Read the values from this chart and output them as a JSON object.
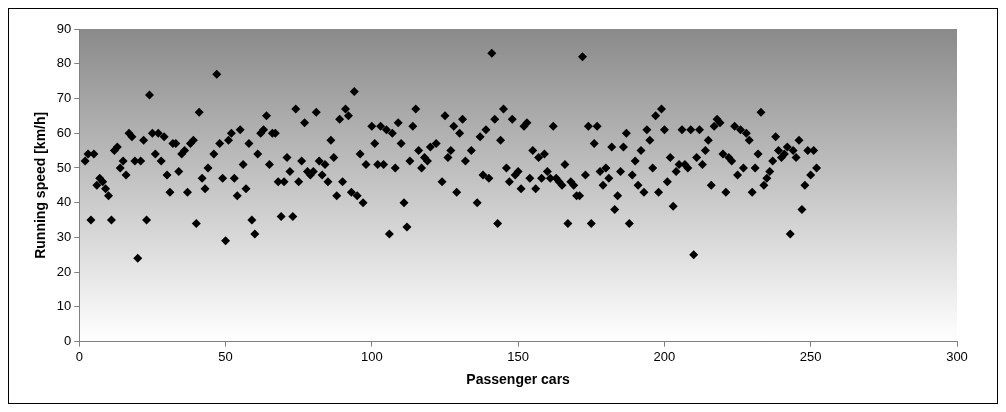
{
  "chart_data": {
    "type": "scatter",
    "xlabel": "Passenger cars",
    "ylabel": "Running speed [km/h]",
    "x": [
      2,
      3,
      4,
      5,
      6,
      7,
      8,
      9,
      10,
      11,
      12,
      13,
      14,
      15,
      16,
      17,
      18,
      19,
      20,
      21,
      22,
      23,
      24,
      25,
      26,
      27,
      28,
      29,
      30,
      31,
      32,
      33,
      34,
      35,
      36,
      37,
      38,
      39,
      40,
      41,
      42,
      43,
      44,
      46,
      47,
      48,
      49,
      50,
      51,
      52,
      53,
      54,
      55,
      56,
      57,
      58,
      59,
      60,
      61,
      62,
      63,
      64,
      65,
      66,
      67,
      68,
      69,
      70,
      71,
      72,
      73,
      74,
      75,
      76,
      77,
      78,
      79,
      80,
      81,
      82,
      83,
      84,
      85,
      86,
      87,
      88,
      89,
      90,
      91,
      92,
      93,
      94,
      95,
      96,
      97,
      98,
      100,
      101,
      102,
      103,
      104,
      105,
      106,
      107,
      108,
      109,
      110,
      111,
      112,
      113,
      114,
      115,
      116,
      117,
      118,
      119,
      120,
      122,
      124,
      125,
      126,
      127,
      128,
      129,
      130,
      131,
      132,
      134,
      136,
      137,
      138,
      139,
      140,
      141,
      142,
      143,
      144,
      145,
      146,
      147,
      148,
      149,
      150,
      151,
      152,
      153,
      154,
      155,
      156,
      157,
      158,
      159,
      160,
      161,
      162,
      163,
      164,
      165,
      166,
      167,
      168,
      169,
      170,
      171,
      172,
      173,
      174,
      175,
      176,
      177,
      178,
      179,
      180,
      181,
      182,
      183,
      184,
      185,
      186,
      187,
      188,
      189,
      190,
      191,
      192,
      193,
      194,
      195,
      196,
      197,
      198,
      199,
      200,
      201,
      202,
      203,
      204,
      205,
      206,
      207,
      208,
      209,
      210,
      211,
      212,
      213,
      214,
      215,
      216,
      217,
      218,
      219,
      220,
      221,
      222,
      223,
      224,
      225,
      226,
      227,
      228,
      229,
      230,
      231,
      232,
      233,
      234,
      235,
      236,
      237,
      238,
      239,
      240,
      241,
      242,
      243,
      244,
      245,
      246,
      247,
      248,
      249,
      250,
      251,
      252
    ],
    "values": [
      52,
      54,
      35,
      54,
      45,
      47,
      46,
      44,
      42,
      35,
      55,
      56,
      50,
      52,
      48,
      60,
      59,
      52,
      24,
      52,
      58,
      35,
      71,
      60,
      54,
      60,
      52,
      59,
      48,
      43,
      57,
      57,
      49,
      54,
      55,
      43,
      57,
      58,
      34,
      66,
      47,
      44,
      50,
      54,
      77,
      57,
      47,
      29,
      58,
      60,
      47,
      42,
      61,
      51,
      44,
      57,
      35,
      31,
      54,
      60,
      61,
      65,
      51,
      60,
      60,
      46,
      36,
      46,
      53,
      49,
      36,
      67,
      46,
      52,
      63,
      49,
      48,
      49,
      66,
      52,
      48,
      51,
      46,
      58,
      53,
      42,
      64,
      46,
      67,
      65,
      43,
      72,
      42,
      54,
      40,
      51,
      62,
      57,
      51,
      62,
      51,
      61,
      31,
      60,
      50,
      63,
      57,
      40,
      33,
      52,
      62,
      67,
      55,
      50,
      53,
      52,
      56,
      57,
      46,
      65,
      53,
      55,
      62,
      43,
      60,
      64,
      52,
      55,
      40,
      59,
      48,
      61,
      47,
      83,
      64,
      34,
      58,
      67,
      50,
      46,
      64,
      48,
      49,
      44,
      62,
      63,
      47,
      55,
      44,
      53,
      47,
      54,
      49,
      47,
      62,
      47,
      46,
      45,
      51,
      34,
      46,
      45,
      42,
      42,
      82,
      48,
      62,
      34,
      57,
      62,
      49,
      45,
      50,
      47,
      56,
      38,
      42,
      49,
      56,
      60,
      34,
      48,
      52,
      45,
      55,
      43,
      61,
      58,
      50,
      65,
      43,
      67,
      61,
      46,
      53,
      39,
      49,
      51,
      61,
      51,
      50,
      61,
      25,
      53,
      61,
      51,
      55,
      58,
      45,
      62,
      64,
      63,
      54,
      43,
      53,
      52,
      62,
      48,
      61,
      50,
      60,
      58,
      43,
      50,
      54,
      66,
      45,
      47,
      49,
      52,
      59,
      55,
      53,
      54,
      56,
      31,
      55,
      53,
      58,
      38,
      45,
      55,
      48,
      55,
      50
    ],
    "color": "#000000",
    "marker": "diamond",
    "xlim": [
      0,
      300
    ],
    "ylim": [
      0,
      90
    ],
    "xticks": [
      0,
      50,
      100,
      150,
      200,
      250,
      300
    ],
    "yticks": [
      0,
      10,
      20,
      30,
      40,
      50,
      60,
      70,
      80,
      90
    ],
    "grid": false,
    "legend": false
  }
}
